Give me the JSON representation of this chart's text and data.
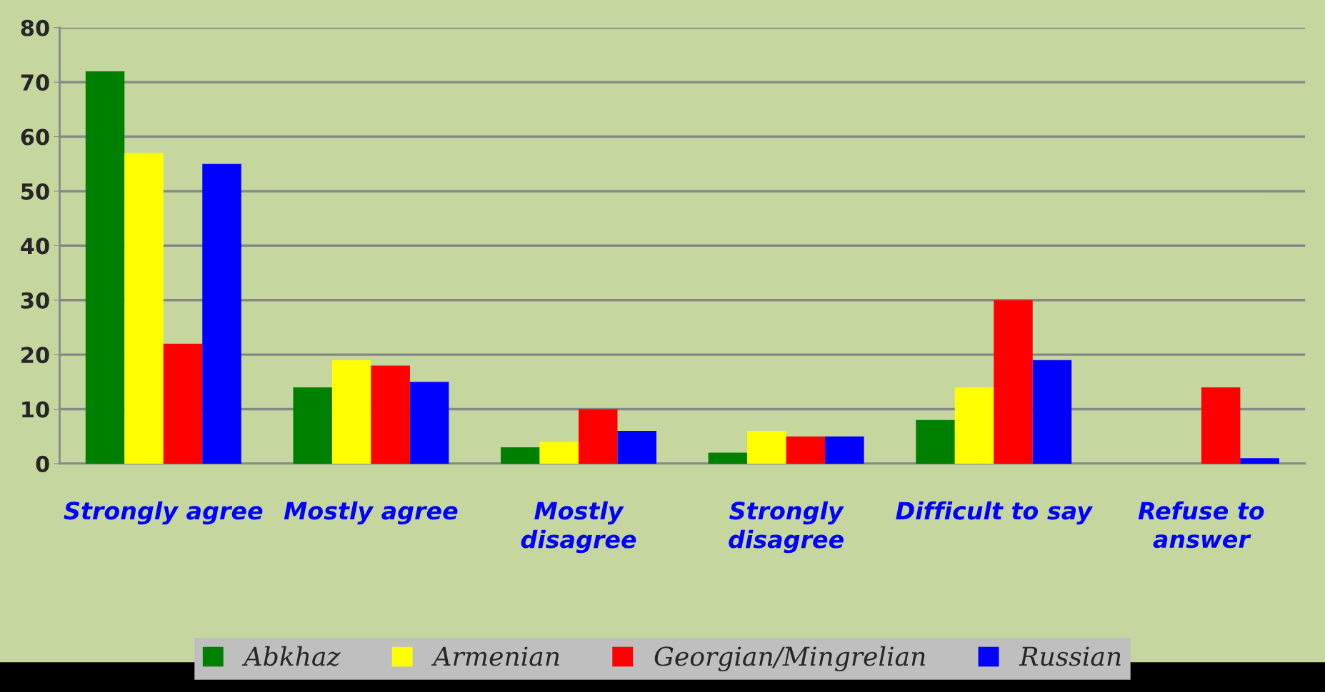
{
  "chart_data": {
    "type": "bar",
    "categories": [
      "Strongly agree",
      "Mostly agree",
      "Mostly\ndisagree",
      "Strongly\ndisagree",
      "Difficult to say",
      "Refuse to\nanswer"
    ],
    "series": [
      {
        "name": "Abkhaz",
        "color": "#008000",
        "values": [
          72,
          14,
          3,
          2,
          8,
          0
        ]
      },
      {
        "name": "Armenian",
        "color": "#ffff00",
        "values": [
          57,
          19,
          4,
          6,
          14,
          0
        ]
      },
      {
        "name": "Georgian/Mingrelian",
        "color": "#ff0000",
        "values": [
          22,
          18,
          10,
          5,
          30,
          14
        ]
      },
      {
        "name": "Russian",
        "color": "#0000ff",
        "values": [
          55,
          15,
          6,
          5,
          19,
          1
        ]
      }
    ],
    "ylim": [
      0,
      80
    ],
    "yticks": [
      0,
      10,
      20,
      30,
      40,
      50,
      60,
      70,
      80
    ],
    "grid": "y",
    "legend": "bottom"
  }
}
